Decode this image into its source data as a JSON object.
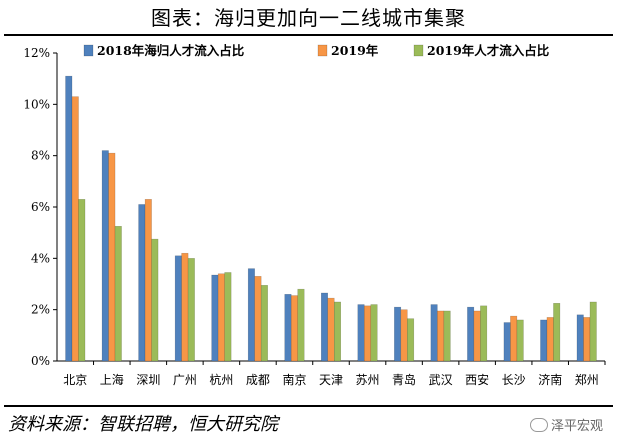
{
  "title": "图表：海归更加向一二线城市集聚",
  "source": "资料来源：智联招聘，恒大研究院",
  "watermark": "泽平宏观",
  "watermark_icon": "wechat-icon",
  "chart_data": {
    "type": "bar",
    "categories": [
      "北京",
      "上海",
      "深圳",
      "广州",
      "杭州",
      "成都",
      "南京",
      "天津",
      "苏州",
      "青岛",
      "武汉",
      "西安",
      "长沙",
      "济南",
      "郑州"
    ],
    "series": [
      {
        "name": "2018年海归人才流入占比",
        "color": "#4F81BD",
        "values": [
          11.1,
          8.2,
          6.1,
          4.1,
          3.35,
          3.6,
          2.6,
          2.65,
          2.2,
          2.1,
          2.2,
          2.1,
          1.5,
          1.6,
          1.8
        ]
      },
      {
        "name": "2019年",
        "color": "#F79646",
        "values": [
          10.3,
          8.1,
          6.3,
          4.2,
          3.4,
          3.3,
          2.55,
          2.45,
          2.15,
          2.0,
          1.95,
          1.95,
          1.75,
          1.7,
          1.7
        ]
      },
      {
        "name": "2019年人才流入占比",
        "color": "#9BBB59",
        "values": [
          6.3,
          5.25,
          4.75,
          4.0,
          3.45,
          2.95,
          2.8,
          2.3,
          2.2,
          1.65,
          1.95,
          2.15,
          1.6,
          2.25,
          2.3
        ]
      }
    ],
    "yticks": [
      "0%",
      "2%",
      "4%",
      "6%",
      "8%",
      "10%",
      "12%"
    ],
    "ylim": [
      0,
      12
    ],
    "xlabel": "",
    "ylabel": "",
    "legend_position": "top",
    "grid": false
  }
}
